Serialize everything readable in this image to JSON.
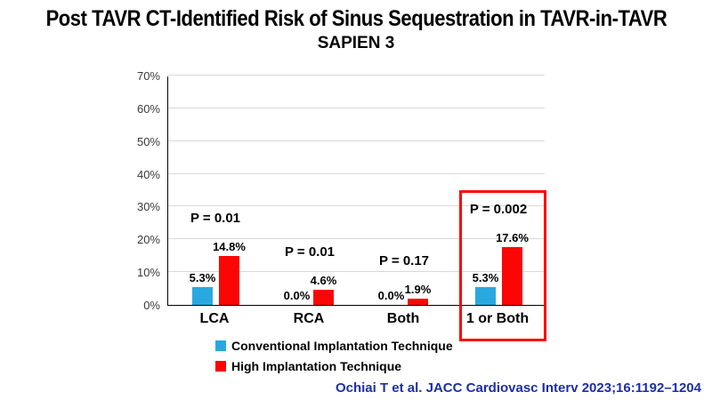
{
  "title": "Post TAVR CT-Identified Risk of Sinus Sequestration in TAVR-in-TAVR",
  "subtitle": "SAPIEN 3",
  "citation": "Ochiai T et al. JACC Cardiovasc Interv 2023;16:1192–1204",
  "colors": {
    "conventional": "#29a8e0",
    "high": "#fb0505",
    "highlight_box": "#fb0505",
    "gridline": "#d9d9d9",
    "axis": "#000000",
    "citation": "#1c2fa3"
  },
  "chart_data": {
    "type": "bar",
    "categories": [
      "LCA",
      "RCA",
      "Both",
      "1 or Both"
    ],
    "series": [
      {
        "name": "Conventional Implantation Technique",
        "color": "#29a8e0",
        "values": [
          5.3,
          0.0,
          0.0,
          5.3
        ],
        "labels": [
          "5.3%",
          "0.0%",
          "0.0%",
          "5.3%"
        ]
      },
      {
        "name": "High Implantation Technique",
        "color": "#fb0505",
        "values": [
          14.8,
          4.6,
          1.9,
          17.6
        ],
        "labels": [
          "14.8%",
          "4.6%",
          "1.9%",
          "17.6%"
        ]
      }
    ],
    "p_values": [
      "P = 0.01",
      "P = 0.01",
      "P = 0.17",
      "P = 0.002"
    ],
    "highlighted_category": "1 or Both",
    "xlabel": "",
    "ylabel": "",
    "ylim": [
      0,
      70
    ],
    "y_ticks": [
      "0%",
      "10%",
      "20%",
      "30%",
      "40%",
      "50%",
      "60%",
      "70%"
    ],
    "grid": true,
    "legend_position": "bottom"
  },
  "legend": {
    "items": [
      {
        "label": "Conventional Implantation Technique",
        "color": "#29a8e0"
      },
      {
        "label": "High Implantation Technique",
        "color": "#fb0505"
      }
    ]
  }
}
